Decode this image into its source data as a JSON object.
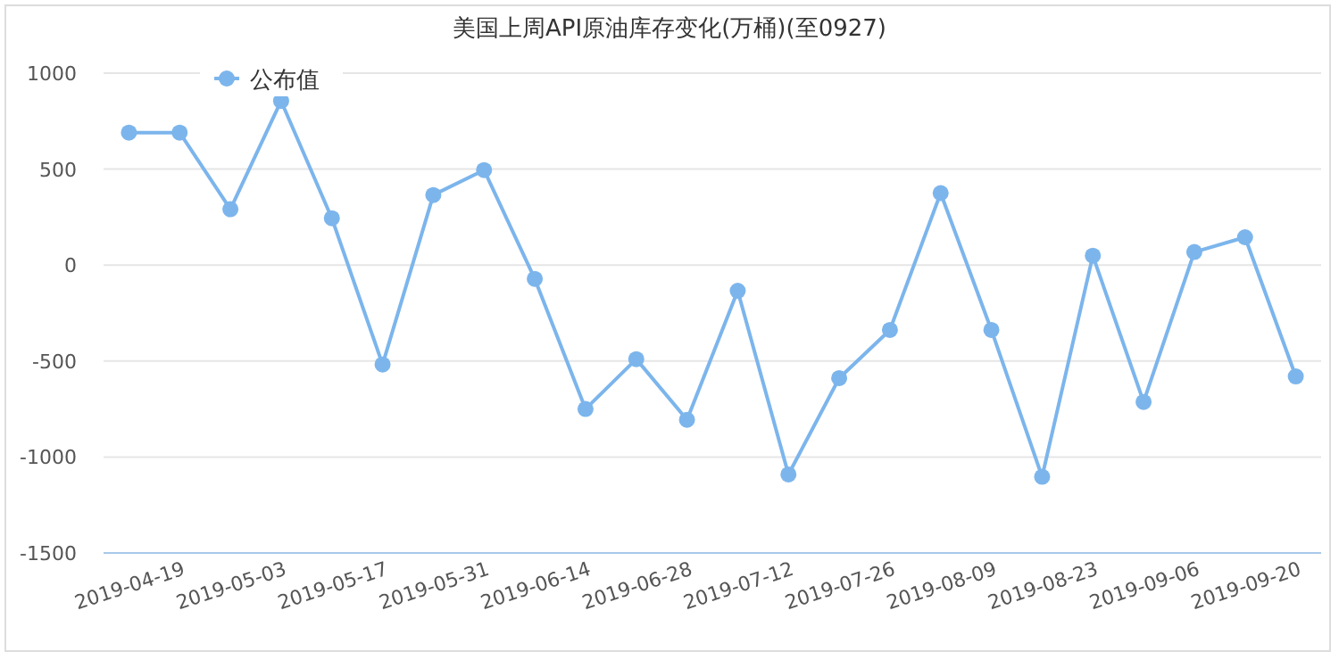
{
  "chart_data": {
    "type": "line",
    "title": "美国上周API原油库存变化(万桶)(至0927)",
    "categories": [
      "2019-04-19",
      null,
      "2019-05-03",
      null,
      "2019-05-17",
      null,
      "2019-05-31",
      null,
      "2019-06-14",
      null,
      "2019-06-28",
      null,
      "2019-07-12",
      null,
      "2019-07-26",
      null,
      "2019-08-09",
      null,
      "2019-08-23",
      null,
      "2019-09-06",
      null,
      "2019-09-20",
      null
    ],
    "series": [
      {
        "name": "公布值",
        "color": "#7cb5ec",
        "values": [
          690,
          690,
          291,
          855,
          244,
          -518,
          365,
          495,
          -72,
          -750,
          -490,
          -806,
          -134,
          -1091,
          -589,
          -338,
          375,
          -338,
          -1103,
          49,
          -713,
          68,
          145,
          -580
        ]
      }
    ],
    "ylim": [
      -1500,
      1000
    ],
    "yticks": [
      -1500,
      -1000,
      -500,
      0,
      500,
      1000
    ],
    "grid": "y",
    "legend": "top left",
    "marker": "circle",
    "line_style": "solid"
  }
}
